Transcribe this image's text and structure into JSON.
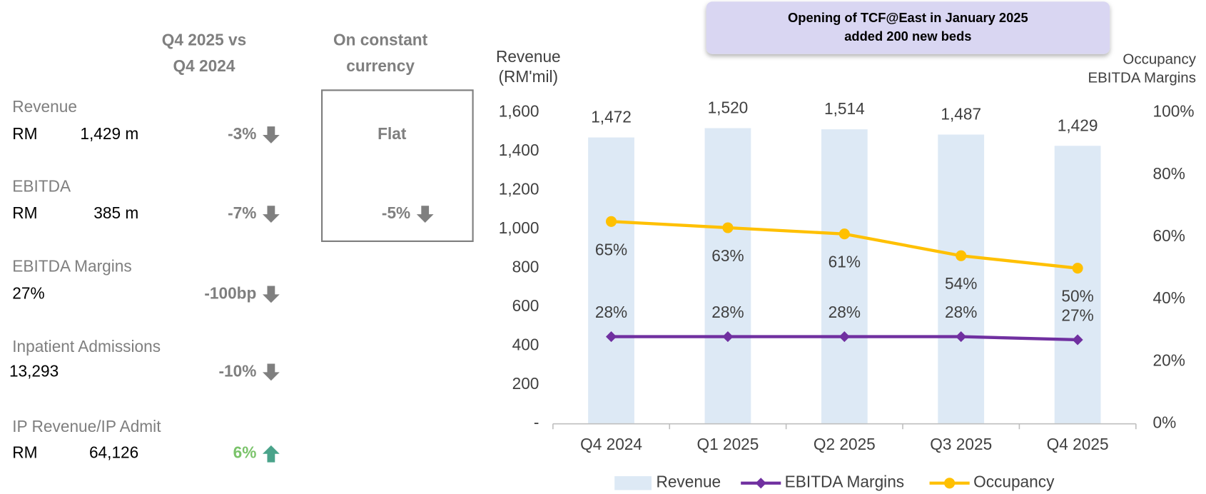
{
  "header": {
    "comparison": [
      "Q4 2025 vs",
      "Q4 2024"
    ],
    "constant": [
      "On constant",
      "currency"
    ]
  },
  "kpis": [
    {
      "label": "Revenue",
      "unit": "RM",
      "value": "1,429 m",
      "change": "-3%",
      "trend": "down",
      "constant": {
        "change": "Flat"
      }
    },
    {
      "label": "EBITDA",
      "unit": "RM",
      "value": "385 m",
      "change": "-7%",
      "trend": "down",
      "constant": {
        "change": "-5%",
        "trend": "down"
      }
    },
    {
      "label": "EBITDA Margins",
      "value": "27%",
      "change": "-100bp",
      "trend": "down"
    },
    {
      "label": "Inpatient Admissions",
      "value": "13,293",
      "change": "-10%",
      "trend": "down"
    },
    {
      "label": "IP Revenue/IP Admit",
      "unit": "RM",
      "value": "64,126",
      "change": "6%",
      "trend": "up"
    }
  ],
  "chart_data": {
    "type": "bar_line",
    "annotation": [
      "Opening of TCF@East in January 2025",
      "added 200 new beds"
    ],
    "y_label": [
      "Revenue",
      "(RM'mil)"
    ],
    "y2_label": [
      "Occupancy",
      "EBITDA Margins"
    ],
    "categories": [
      "Q4 2024",
      "Q1 2025",
      "Q2 2025",
      "Q3 2025",
      "Q4 2025"
    ],
    "ylim": [
      0,
      1600
    ],
    "yticks": [
      {
        "value": 0,
        "label": "-"
      },
      200,
      400,
      600,
      800,
      {
        "value": 1000,
        "label": "1,000"
      },
      {
        "value": 1200,
        "label": "1,200"
      },
      {
        "value": 1400,
        "label": "1,400"
      },
      {
        "value": 1600,
        "label": "1,600"
      }
    ],
    "y2lim": [
      0,
      100
    ],
    "y2ticks": [
      {
        "value": 0,
        "label": "0%"
      },
      {
        "value": 20,
        "label": "20%"
      },
      {
        "value": 40,
        "label": "40%"
      },
      {
        "value": 60,
        "label": "60%"
      },
      {
        "value": 80,
        "label": "80%"
      },
      {
        "value": 100,
        "label": "100%"
      }
    ],
    "legend": "bottom",
    "series": [
      {
        "name": "Revenue",
        "type": "bar",
        "color": "#dde9f5",
        "values": [
          1472,
          1520,
          1514,
          1487,
          1429
        ],
        "value_labels": [
          "1,472",
          "1,520",
          "1,514",
          "1,487",
          "1,429"
        ]
      },
      {
        "name": "EBITDA Margins",
        "type": "line",
        "marker": "diamond",
        "axis": "y2",
        "color": "#7030a0",
        "values": [
          28,
          28,
          28,
          28,
          27
        ],
        "value_labels": [
          "28%",
          "28%",
          "28%",
          "28%",
          "27%"
        ]
      },
      {
        "name": "Occupancy",
        "type": "line",
        "marker": "circle",
        "axis": "y2",
        "color": "#ffc000",
        "values": [
          65,
          63,
          61,
          54,
          50
        ],
        "value_labels": [
          "65%",
          "63%",
          "61%",
          "54%",
          "50%"
        ]
      }
    ]
  }
}
